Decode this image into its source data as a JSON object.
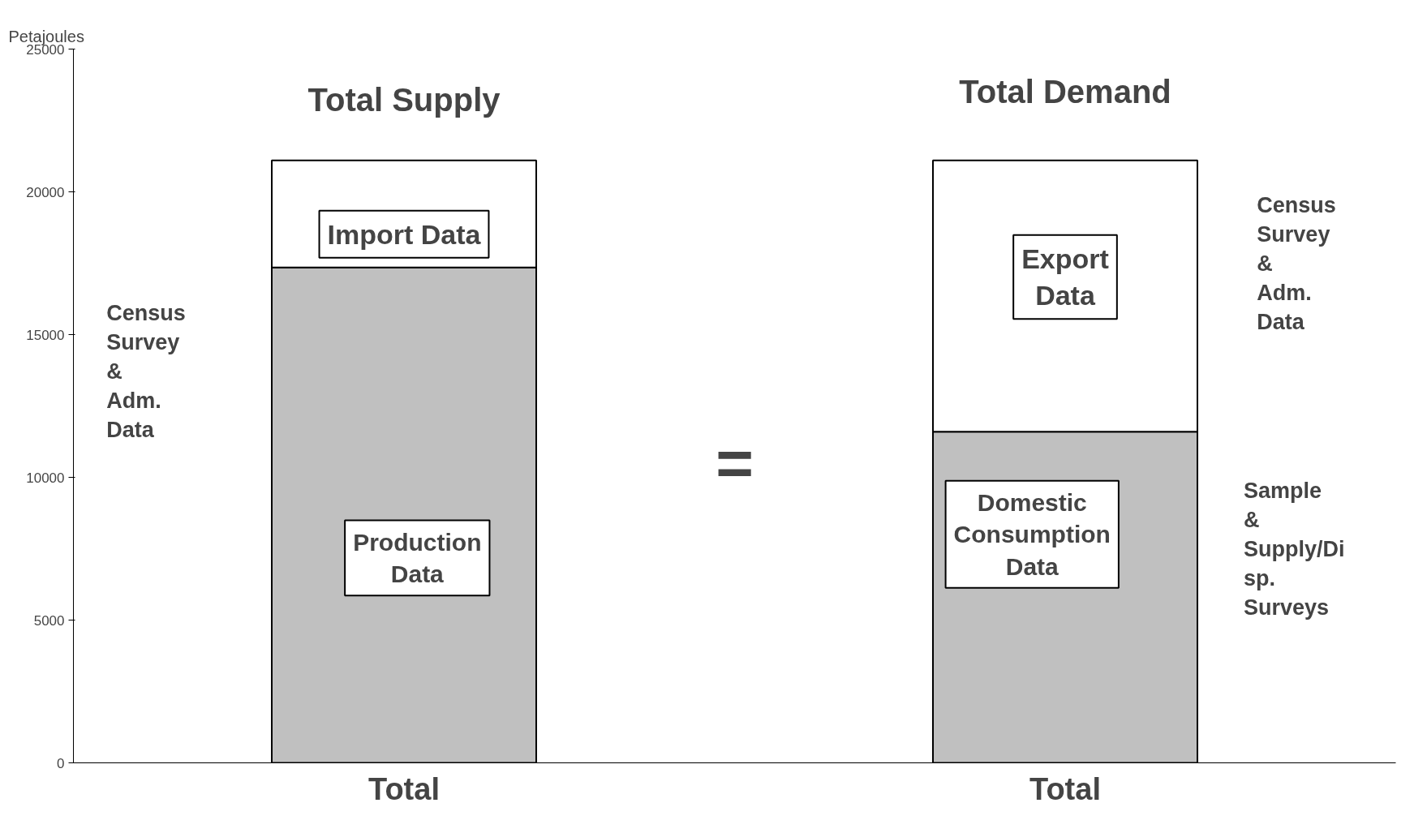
{
  "chart_data": {
    "type": "bar",
    "stacked": true,
    "ylabel": "Petajoules",
    "categories": [
      "Total",
      "Total"
    ],
    "series": [
      {
        "color": "#c0c0c0",
        "values": [
          17350,
          11600
        ]
      },
      {
        "color": "#ffffff",
        "values": [
          3750,
          9500
        ]
      }
    ],
    "ylim": [
      0,
      25000
    ],
    "yticks": [
      0,
      5000,
      10000,
      15000,
      20000,
      25000
    ],
    "grid": false,
    "annotations": [
      "Total Supply",
      "Total Demand",
      "Import Data",
      "Production\nData",
      "Export\nData",
      "Domestic\nConsumption\nData",
      "Census\nSurvey\n&\nAdm.\nData",
      "=",
      "Census\nSurvey\n&\nAdm.\nData",
      "Sample\n&\nSupply/Di\nsp.\nSurveys"
    ]
  }
}
